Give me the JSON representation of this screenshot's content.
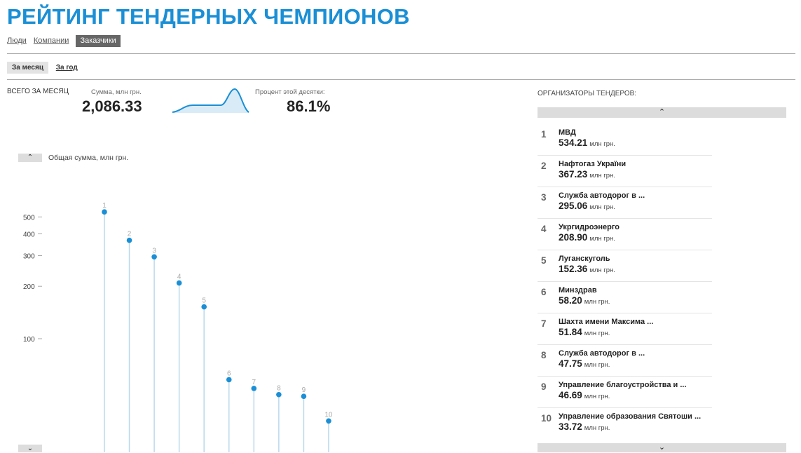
{
  "page": {
    "title": "РЕЙТИНГ ТЕНДЕРНЫХ ЧЕМПИОНОВ"
  },
  "nav": {
    "tabs": [
      {
        "label": "Люди"
      },
      {
        "label": "Компании"
      },
      {
        "label": "Заказчики"
      }
    ],
    "active": "Заказчики"
  },
  "period": {
    "tabs": [
      {
        "label": "За месяц"
      },
      {
        "label": "За год"
      }
    ],
    "active": "За месяц"
  },
  "summary": {
    "total_label": "ВСЕГО ЗА МЕСЯЦ",
    "sum_label": "Сумма, млн грн.",
    "sum_value": "2,086.33",
    "percent_label": "Процент этой десятки:",
    "percent_value": "86.1%"
  },
  "icons": {
    "up": "chevron-up-icon",
    "down": "chevron-down-icon"
  },
  "colors": {
    "accent": "#1a8fd6",
    "stem": "#b9d8ec",
    "point": "#1a8fd6"
  },
  "chart_data": {
    "type": "scatter",
    "title": "Общая сумма, млн грн.",
    "y_scale": "log",
    "y_ticks": [
      100,
      200,
      300,
      400,
      500
    ],
    "x": [
      1,
      2,
      3,
      4,
      5,
      6,
      7,
      8,
      9,
      10
    ],
    "values": [
      534.21,
      367.23,
      295.06,
      208.9,
      152.36,
      58.2,
      51.84,
      47.75,
      46.69,
      33.72
    ],
    "labels": [
      "1",
      "2",
      "3",
      "4",
      "5",
      "6",
      "7",
      "8",
      "9",
      "10"
    ]
  },
  "organizers": {
    "title": "ОРГАНИЗАТОРЫ ТЕНДЕРОВ:",
    "unit": "млн грн.",
    "items": [
      {
        "rank": "1",
        "name": "МВД",
        "value": "534.21"
      },
      {
        "rank": "2",
        "name": "Нафтогаз України",
        "value": "367.23"
      },
      {
        "rank": "3",
        "name": "Служба автодорог в ...",
        "value": "295.06"
      },
      {
        "rank": "4",
        "name": "Укргидроэнерго",
        "value": "208.90"
      },
      {
        "rank": "5",
        "name": "Луганскуголь",
        "value": "152.36"
      },
      {
        "rank": "6",
        "name": "Минздрав",
        "value": "58.20"
      },
      {
        "rank": "7",
        "name": "Шахта имени Максима ...",
        "value": "51.84"
      },
      {
        "rank": "8",
        "name": "Служба автодорог в ...",
        "value": "47.75"
      },
      {
        "rank": "9",
        "name": "Управление благоустройства и ...",
        "value": "46.69"
      },
      {
        "rank": "10",
        "name": "Управление образования Святоши ...",
        "value": "33.72"
      }
    ]
  }
}
